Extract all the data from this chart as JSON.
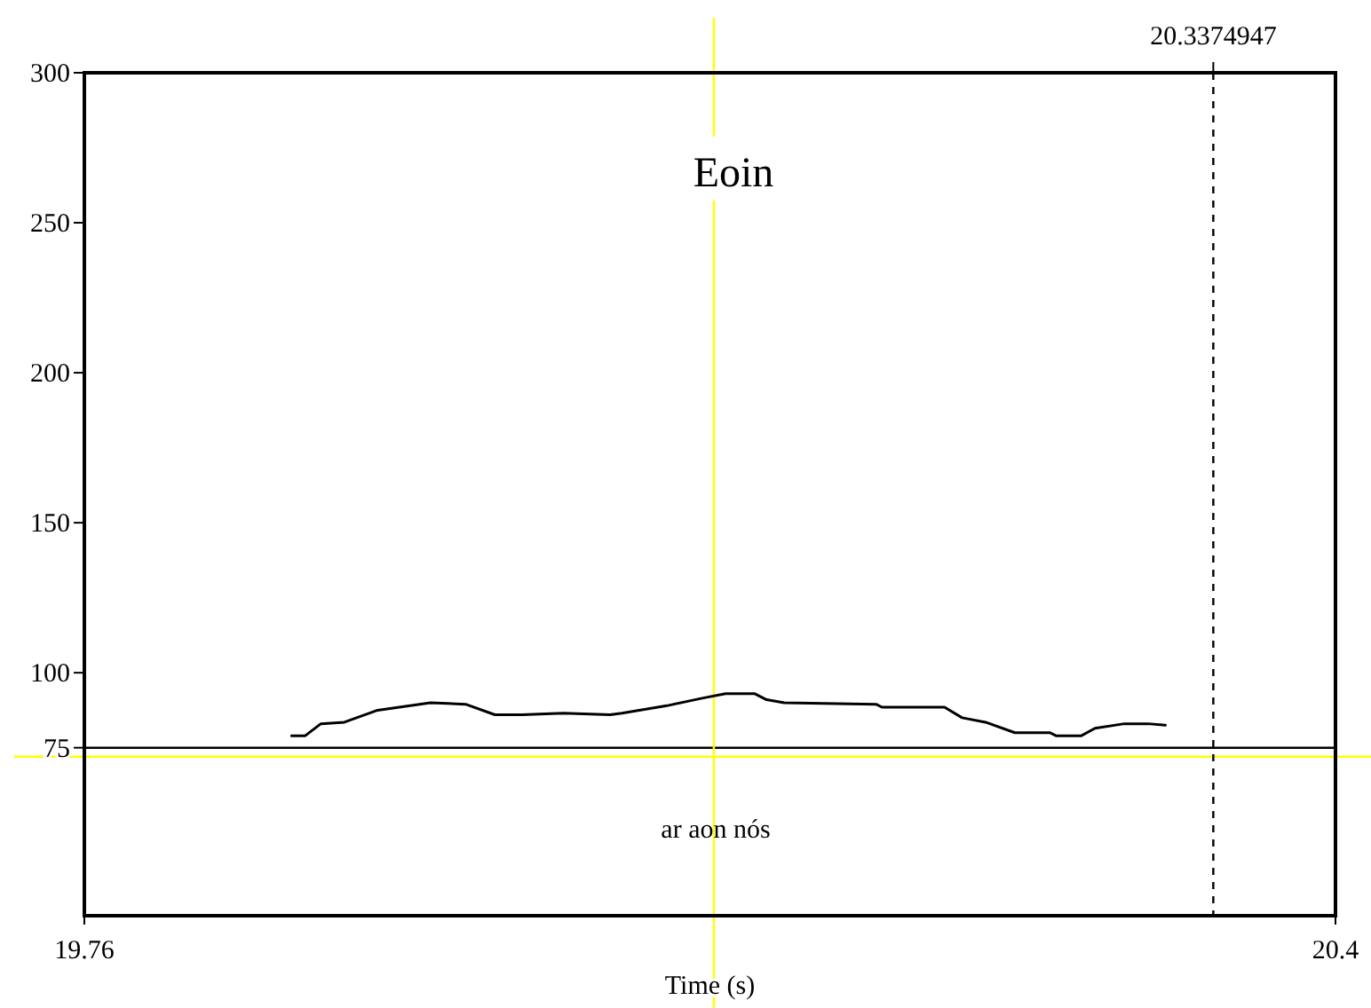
{
  "chart_data": {
    "type": "line",
    "xlabel": "Time (s)",
    "x": [
      19.866,
      19.873,
      19.881,
      19.893,
      19.91,
      19.937,
      19.955,
      19.97,
      19.984,
      20.005,
      20.029,
      20.035,
      20.058,
      20.076,
      20.088,
      20.103,
      20.109,
      20.118,
      20.165,
      20.168,
      20.2,
      20.209,
      20.221,
      20.236,
      20.254,
      20.257,
      20.27,
      20.277,
      20.292,
      20.304,
      20.313
    ],
    "series": [
      {
        "color": "#000000",
        "values": [
          79,
          79,
          83,
          83.5,
          87.5,
          90,
          89.5,
          86,
          86,
          86.5,
          86,
          86.5,
          89,
          91.5,
          93,
          93,
          91,
          90,
          89.5,
          88.5,
          88.5,
          85,
          83.5,
          80,
          80,
          79,
          79,
          81.5,
          83,
          83,
          82.5
        ]
      }
    ],
    "xlim": [
      19.76,
      20.4
    ],
    "xticks": [
      19.76,
      20.4
    ],
    "ylim": [
      19,
      300
    ],
    "yticks": [
      75,
      100,
      150,
      200,
      250,
      300
    ],
    "ref_lines": [
      {
        "axis": "y",
        "value": 75,
        "color": "#000000"
      },
      {
        "axis": "y",
        "value": 72,
        "color": "#ffff00"
      },
      {
        "axis": "x",
        "value": 20.082,
        "color": "#ffff00"
      },
      {
        "axis": "x",
        "value": 20.3374947,
        "label": "20.3374947",
        "color": "#000000",
        "line_style": "dashed"
      }
    ],
    "annotations": [
      "Eoin",
      "ar aon nós"
    ],
    "grid": false,
    "marker": "none",
    "line_style": "solid"
  }
}
